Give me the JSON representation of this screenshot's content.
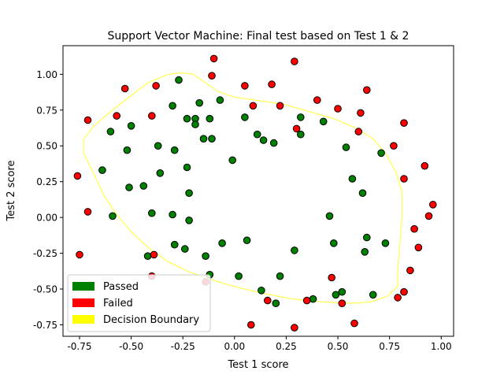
{
  "chart_data": {
    "type": "scatter",
    "title": "Support Vector Machine: Final test based on Test 1 & 2",
    "xlabel": "Test 1 score",
    "ylabel": "Test 2 score",
    "xlim": [
      -0.83,
      1.06
    ],
    "ylim": [
      -0.83,
      1.2
    ],
    "xticks": [
      "-0.75",
      "-0.50",
      "-0.25",
      "0.00",
      "0.25",
      "0.50",
      "0.75",
      "1.00"
    ],
    "yticks": [
      "-0.75",
      "-0.50",
      "-0.25",
      "0.00",
      "0.25",
      "0.50",
      "0.75",
      "1.00"
    ],
    "grid": false,
    "legend_position": "lower-left",
    "legend": [
      {
        "label": "Passed",
        "color": "#008000"
      },
      {
        "label": "Failed",
        "color": "#ff0000"
      },
      {
        "label": "Decision Boundary",
        "color": "#ffff00"
      }
    ],
    "series": [
      {
        "name": "Passed",
        "color": "#008000",
        "points": [
          [
            -0.27,
            0.96
          ],
          [
            -0.3,
            0.78
          ],
          [
            -0.17,
            0.8
          ],
          [
            -0.23,
            0.69
          ],
          [
            -0.19,
            0.69
          ],
          [
            -0.19,
            0.65
          ],
          [
            -0.12,
            0.69
          ],
          [
            -0.07,
            0.82
          ],
          [
            0.05,
            0.7
          ],
          [
            -0.15,
            0.55
          ],
          [
            -0.11,
            0.55
          ],
          [
            -0.5,
            0.64
          ],
          [
            -0.6,
            0.6
          ],
          [
            -0.52,
            0.47
          ],
          [
            -0.37,
            0.5
          ],
          [
            -0.29,
            0.47
          ],
          [
            -0.64,
            0.33
          ],
          [
            -0.36,
            0.31
          ],
          [
            -0.51,
            0.21
          ],
          [
            -0.44,
            0.22
          ],
          [
            -0.23,
            0.35
          ],
          [
            -0.01,
            0.4
          ],
          [
            -0.22,
            0.17
          ],
          [
            -0.59,
            0.01
          ],
          [
            -0.4,
            0.03
          ],
          [
            -0.3,
            0.02
          ],
          [
            -0.22,
            -0.02
          ],
          [
            -0.29,
            -0.19
          ],
          [
            -0.24,
            -0.22
          ],
          [
            -0.42,
            -0.27
          ],
          [
            -0.06,
            -0.18
          ],
          [
            -0.14,
            -0.27
          ],
          [
            0.06,
            -0.16
          ],
          [
            0.11,
            0.58
          ],
          [
            0.14,
            0.54
          ],
          [
            0.19,
            0.52
          ],
          [
            0.32,
            0.7
          ],
          [
            0.32,
            0.58
          ],
          [
            0.43,
            0.67
          ],
          [
            0.54,
            0.49
          ],
          [
            0.57,
            0.27
          ],
          [
            0.62,
            0.17
          ],
          [
            0.46,
            0.01
          ],
          [
            0.48,
            -0.18
          ],
          [
            0.29,
            -0.23
          ],
          [
            0.64,
            -0.14
          ],
          [
            0.73,
            -0.18
          ],
          [
            0.63,
            -0.24
          ],
          [
            0.71,
            0.45
          ],
          [
            0.22,
            -0.41
          ],
          [
            0.02,
            -0.41
          ],
          [
            0.13,
            -0.51
          ],
          [
            -0.12,
            -0.4
          ],
          [
            0.2,
            -0.6
          ],
          [
            0.38,
            -0.57
          ],
          [
            0.52,
            -0.52
          ],
          [
            0.49,
            -0.54
          ],
          [
            0.67,
            -0.54
          ]
        ]
      },
      {
        "name": "Failed",
        "color": "#ff0000",
        "points": [
          [
            -0.1,
            1.11
          ],
          [
            -0.11,
            0.99
          ],
          [
            -0.53,
            0.9
          ],
          [
            -0.38,
            0.92
          ],
          [
            -0.71,
            0.68
          ],
          [
            -0.57,
            0.71
          ],
          [
            -0.4,
            0.71
          ],
          [
            0.05,
            0.92
          ],
          [
            0.09,
            0.78
          ],
          [
            0.18,
            0.93
          ],
          [
            0.22,
            0.78
          ],
          [
            0.29,
            1.09
          ],
          [
            0.4,
            0.82
          ],
          [
            0.5,
            0.76
          ],
          [
            0.61,
            0.73
          ],
          [
            0.64,
            0.89
          ],
          [
            0.82,
            0.66
          ],
          [
            0.3,
            0.62
          ],
          [
            0.6,
            0.6
          ],
          [
            0.77,
            0.5
          ],
          [
            -0.76,
            0.29
          ],
          [
            -0.71,
            0.04
          ],
          [
            0.82,
            0.27
          ],
          [
            0.92,
            0.36
          ],
          [
            0.96,
            0.09
          ],
          [
            0.94,
            0.01
          ],
          [
            0.87,
            -0.08
          ],
          [
            0.89,
            -0.21
          ],
          [
            -0.75,
            -0.26
          ],
          [
            -0.39,
            -0.26
          ],
          [
            -0.4,
            -0.41
          ],
          [
            -0.14,
            -0.45
          ],
          [
            0.16,
            -0.58
          ],
          [
            0.35,
            -0.58
          ],
          [
            0.47,
            -0.42
          ],
          [
            0.52,
            -0.6
          ],
          [
            0.79,
            -0.56
          ],
          [
            0.82,
            -0.52
          ],
          [
            0.85,
            -0.37
          ],
          [
            0.08,
            -0.75
          ],
          [
            0.29,
            -0.77
          ],
          [
            0.58,
            -0.74
          ]
        ]
      }
    ],
    "decision_boundary": [
      [
        -0.26,
        1.01
      ],
      [
        -0.32,
        1.0
      ],
      [
        -0.42,
        0.94
      ],
      [
        -0.52,
        0.83
      ],
      [
        -0.6,
        0.74
      ],
      [
        -0.68,
        0.64
      ],
      [
        -0.73,
        0.55
      ],
      [
        -0.73,
        0.45
      ],
      [
        -0.68,
        0.3
      ],
      [
        -0.63,
        0.15
      ],
      [
        -0.57,
        0.02
      ],
      [
        -0.5,
        -0.1
      ],
      [
        -0.41,
        -0.22
      ],
      [
        -0.32,
        -0.31
      ],
      [
        -0.22,
        -0.38
      ],
      [
        -0.1,
        -0.44
      ],
      [
        0.02,
        -0.49
      ],
      [
        0.14,
        -0.53
      ],
      [
        0.28,
        -0.57
      ],
      [
        0.42,
        -0.59
      ],
      [
        0.56,
        -0.6
      ],
      [
        0.66,
        -0.59
      ],
      [
        0.74,
        -0.55
      ],
      [
        0.79,
        -0.48
      ],
      [
        0.79,
        -0.36
      ],
      [
        0.8,
        -0.18
      ],
      [
        0.81,
        0.0
      ],
      [
        0.81,
        0.18
      ],
      [
        0.78,
        0.32
      ],
      [
        0.73,
        0.45
      ],
      [
        0.67,
        0.55
      ],
      [
        0.58,
        0.63
      ],
      [
        0.48,
        0.69
      ],
      [
        0.36,
        0.74
      ],
      [
        0.24,
        0.79
      ],
      [
        0.1,
        0.82
      ],
      [
        0.0,
        0.84
      ],
      [
        -0.08,
        0.88
      ],
      [
        -0.15,
        0.95
      ],
      [
        -0.2,
        1.0
      ],
      [
        -0.26,
        1.01
      ]
    ]
  }
}
